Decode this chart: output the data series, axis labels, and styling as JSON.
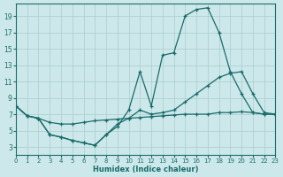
{
  "xlabel": "Humidex (Indice chaleur)",
  "bg_color": "#cce8ea",
  "grid_color": "#aaccce",
  "line_color": "#1a6b6b",
  "xlim": [
    0,
    23
  ],
  "ylim": [
    2,
    20.5
  ],
  "yticks": [
    3,
    5,
    7,
    9,
    11,
    13,
    15,
    17,
    19
  ],
  "xticks": [
    0,
    1,
    2,
    3,
    4,
    5,
    6,
    7,
    8,
    9,
    10,
    11,
    12,
    13,
    14,
    15,
    16,
    17,
    18,
    19,
    20,
    21,
    22,
    23
  ],
  "line1_x": [
    0,
    1,
    2,
    3,
    4,
    5,
    6,
    7,
    8,
    9,
    10,
    11,
    12,
    13,
    14,
    15,
    16,
    17,
    18,
    19,
    20,
    21,
    22,
    23
  ],
  "line1_y": [
    8.0,
    6.8,
    6.5,
    6.0,
    5.8,
    5.8,
    6.0,
    6.2,
    6.3,
    6.4,
    6.5,
    6.6,
    6.7,
    6.8,
    6.9,
    7.0,
    7.0,
    7.0,
    7.2,
    7.2,
    7.3,
    7.2,
    7.0,
    7.0
  ],
  "line2_x": [
    0,
    1,
    2,
    3,
    4,
    5,
    6,
    7,
    8,
    9,
    10,
    11,
    12,
    13,
    14,
    15,
    16,
    17,
    18,
    19,
    20,
    21,
    22,
    23
  ],
  "line2_y": [
    8.0,
    6.8,
    6.5,
    4.5,
    4.2,
    3.8,
    3.5,
    3.2,
    4.5,
    5.8,
    6.5,
    7.5,
    7.0,
    7.2,
    7.5,
    8.5,
    9.5,
    10.5,
    11.5,
    12.0,
    12.2,
    9.5,
    7.2,
    7.0
  ],
  "line3_x": [
    0,
    1,
    2,
    3,
    4,
    5,
    6,
    7,
    8,
    9,
    10,
    11,
    12,
    13,
    14,
    15,
    16,
    17,
    18,
    19,
    20,
    21,
    22,
    23
  ],
  "line3_y": [
    8.0,
    6.8,
    6.5,
    4.5,
    4.2,
    3.8,
    3.5,
    3.2,
    4.5,
    5.5,
    7.5,
    12.2,
    8.0,
    14.2,
    14.5,
    19.0,
    19.8,
    20.0,
    17.0,
    12.2,
    9.5,
    7.2,
    7.0,
    7.0
  ]
}
